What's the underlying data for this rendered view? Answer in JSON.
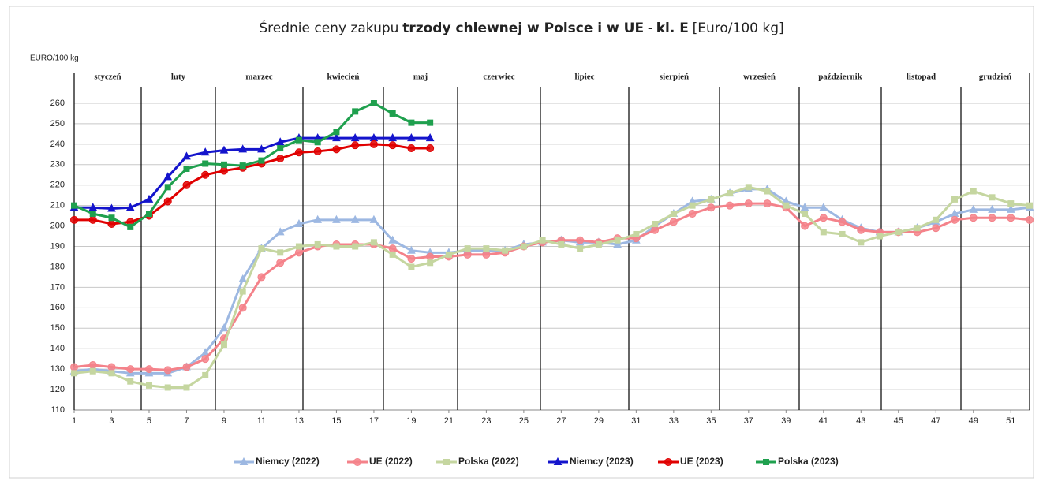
{
  "chart_data": {
    "type": "line",
    "title_parts": [
      "Średnie ceny zakupu",
      "trzody chlewnej w Polsce i w UE",
      "-",
      "kl. E",
      "[Euro/100 kg]"
    ],
    "y_label": "EURO/100 kg",
    "months": [
      "styczeń",
      "luty",
      "marzec",
      "kwiecień",
      "maj",
      "czerwiec",
      "lipiec",
      "sierpień",
      "wrzesień",
      "październik",
      "listopad",
      "grudzień"
    ],
    "x": [
      1,
      2,
      3,
      4,
      5,
      6,
      7,
      8,
      9,
      10,
      11,
      12,
      13,
      14,
      15,
      16,
      17,
      18,
      19,
      20,
      21,
      22,
      23,
      24,
      25,
      26,
      27,
      28,
      29,
      30,
      31,
      32,
      33,
      34,
      35,
      36,
      37,
      38,
      39,
      40,
      41,
      42,
      43,
      44,
      45,
      46,
      47,
      48,
      49,
      50,
      51,
      52
    ],
    "xlim": [
      1,
      52
    ],
    "xticks": [
      1,
      3,
      5,
      7,
      9,
      11,
      13,
      15,
      17,
      19,
      21,
      23,
      25,
      27,
      29,
      31,
      33,
      35,
      37,
      39,
      41,
      43,
      45,
      47,
      49,
      51
    ],
    "ylim": [
      110,
      260
    ],
    "yticks": [
      110,
      120,
      130,
      140,
      150,
      160,
      170,
      180,
      190,
      200,
      210,
      220,
      230,
      240,
      250,
      260
    ],
    "grid": true,
    "legend": "bottom",
    "series": [
      {
        "name": "Niemcy (2022)",
        "color": "#9db8e2",
        "marker": "triangle",
        "values": [
          129,
          130,
          129,
          128,
          128,
          128,
          131,
          138,
          150,
          174,
          189,
          197,
          201,
          203,
          203,
          203,
          203,
          193,
          188,
          187,
          187,
          188,
          188,
          188,
          191,
          192,
          193,
          192,
          192,
          191,
          193,
          200,
          206,
          212,
          213,
          216,
          218,
          218,
          212,
          209,
          209,
          203,
          199,
          197,
          197,
          199,
          202,
          206,
          208,
          208,
          208,
          209
        ]
      },
      {
        "name": "UE (2022)",
        "color": "#f4828a",
        "marker": "circle",
        "values": [
          131,
          132,
          131,
          130,
          130,
          129.5,
          131,
          135,
          145,
          160,
          175,
          182,
          187,
          190,
          191,
          191,
          191,
          189,
          184,
          185,
          185,
          186,
          186,
          187,
          190,
          192,
          193,
          193,
          192,
          194,
          194,
          198,
          202,
          206,
          209,
          210,
          211,
          211,
          209,
          200,
          204,
          202,
          198,
          197,
          197,
          197,
          199,
          203,
          204,
          204,
          204,
          203
        ]
      },
      {
        "name": "Polska (2022)",
        "color": "#c5d6a0",
        "marker": "square",
        "values": [
          128,
          129,
          128,
          124,
          122,
          121,
          121,
          127,
          142,
          168,
          189,
          187,
          190,
          191,
          190,
          190,
          192,
          186,
          180,
          182,
          186,
          189,
          189,
          188,
          190,
          193,
          191,
          189,
          191,
          193,
          196,
          201,
          206,
          210,
          213,
          216,
          219,
          217,
          210,
          206,
          197,
          196,
          192,
          195,
          197,
          199,
          203,
          213,
          217,
          214,
          211,
          210
        ]
      },
      {
        "name": "Niemcy (2023)",
        "color": "#1414cc",
        "marker": "triangle",
        "values": [
          209,
          209,
          208.5,
          209,
          213,
          224,
          234,
          236,
          237,
          237.5,
          237.5,
          241,
          243,
          243,
          243,
          243,
          243,
          243,
          243,
          243,
          null,
          null,
          null,
          null,
          null,
          null,
          null,
          null,
          null,
          null,
          null,
          null,
          null,
          null,
          null,
          null,
          null,
          null,
          null,
          null,
          null,
          null,
          null,
          null,
          null,
          null,
          null,
          null,
          null,
          null,
          null,
          null
        ]
      },
      {
        "name": "UE (2023)",
        "color": "#e00000",
        "marker": "circle",
        "values": [
          203,
          203,
          201,
          202,
          205,
          212,
          220,
          225,
          227,
          228.5,
          230.5,
          233,
          236,
          236.5,
          237.5,
          239.5,
          240,
          239.5,
          238,
          238,
          null,
          null,
          null,
          null,
          null,
          null,
          null,
          null,
          null,
          null,
          null,
          null,
          null,
          null,
          null,
          null,
          null,
          null,
          null,
          null,
          null,
          null,
          null,
          null,
          null,
          null,
          null,
          null,
          null,
          null,
          null,
          null
        ]
      },
      {
        "name": "Polska (2023)",
        "color": "#1fa04e",
        "marker": "square",
        "values": [
          210,
          206,
          204,
          199.5,
          206,
          219,
          228,
          230.5,
          230,
          229.5,
          232,
          238,
          242,
          241,
          246,
          256,
          260,
          255,
          250.5,
          250.5,
          null,
          null,
          null,
          null,
          null,
          null,
          null,
          null,
          null,
          null,
          null,
          null,
          null,
          null,
          null,
          null,
          null,
          null,
          null,
          null,
          null,
          null,
          null,
          null,
          null,
          null,
          null,
          null,
          null,
          null,
          null,
          null
        ]
      }
    ]
  }
}
